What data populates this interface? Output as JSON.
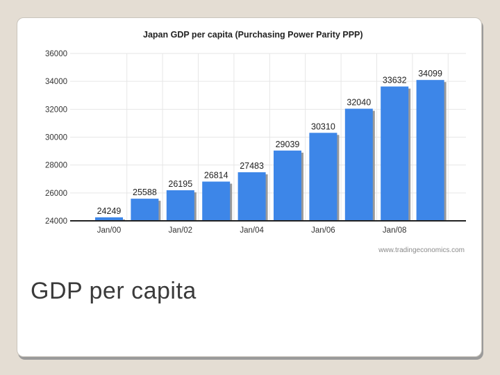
{
  "slide": {
    "caption": "GDP per capita"
  },
  "chart_data": {
    "type": "bar",
    "title": "Japan GDP per capita (Purchasing Power Parity  PPP)",
    "source": "www.tradingeconomics.com",
    "xlabel": "",
    "ylabel": "",
    "categories": [
      "2000",
      "2001",
      "2002",
      "2003",
      "2004",
      "2005",
      "2006",
      "2007",
      "2008",
      "2009"
    ],
    "x_tick_labels": [
      "Jan/00",
      "",
      "Jan/02",
      "",
      "Jan/04",
      "",
      "Jan/06",
      "",
      "Jan/08",
      ""
    ],
    "values": [
      24249,
      25588,
      26195,
      26814,
      27483,
      29039,
      30310,
      32040,
      33632,
      34099
    ],
    "data_labels": [
      "24249",
      "25588",
      "26195",
      "26814",
      "27483",
      "29039",
      "30310",
      "32040",
      "33632",
      "34099"
    ],
    "y_ticks": [
      "24000",
      "26000",
      "28000",
      "30000",
      "32000",
      "34000",
      "36000"
    ],
    "ylim": [
      24000,
      36000
    ],
    "grid": true,
    "legend": "none",
    "bar_color": "#3d86e8",
    "bar_shadow_color": "#9a9a9a",
    "grid_color": "#e6e6e6"
  }
}
